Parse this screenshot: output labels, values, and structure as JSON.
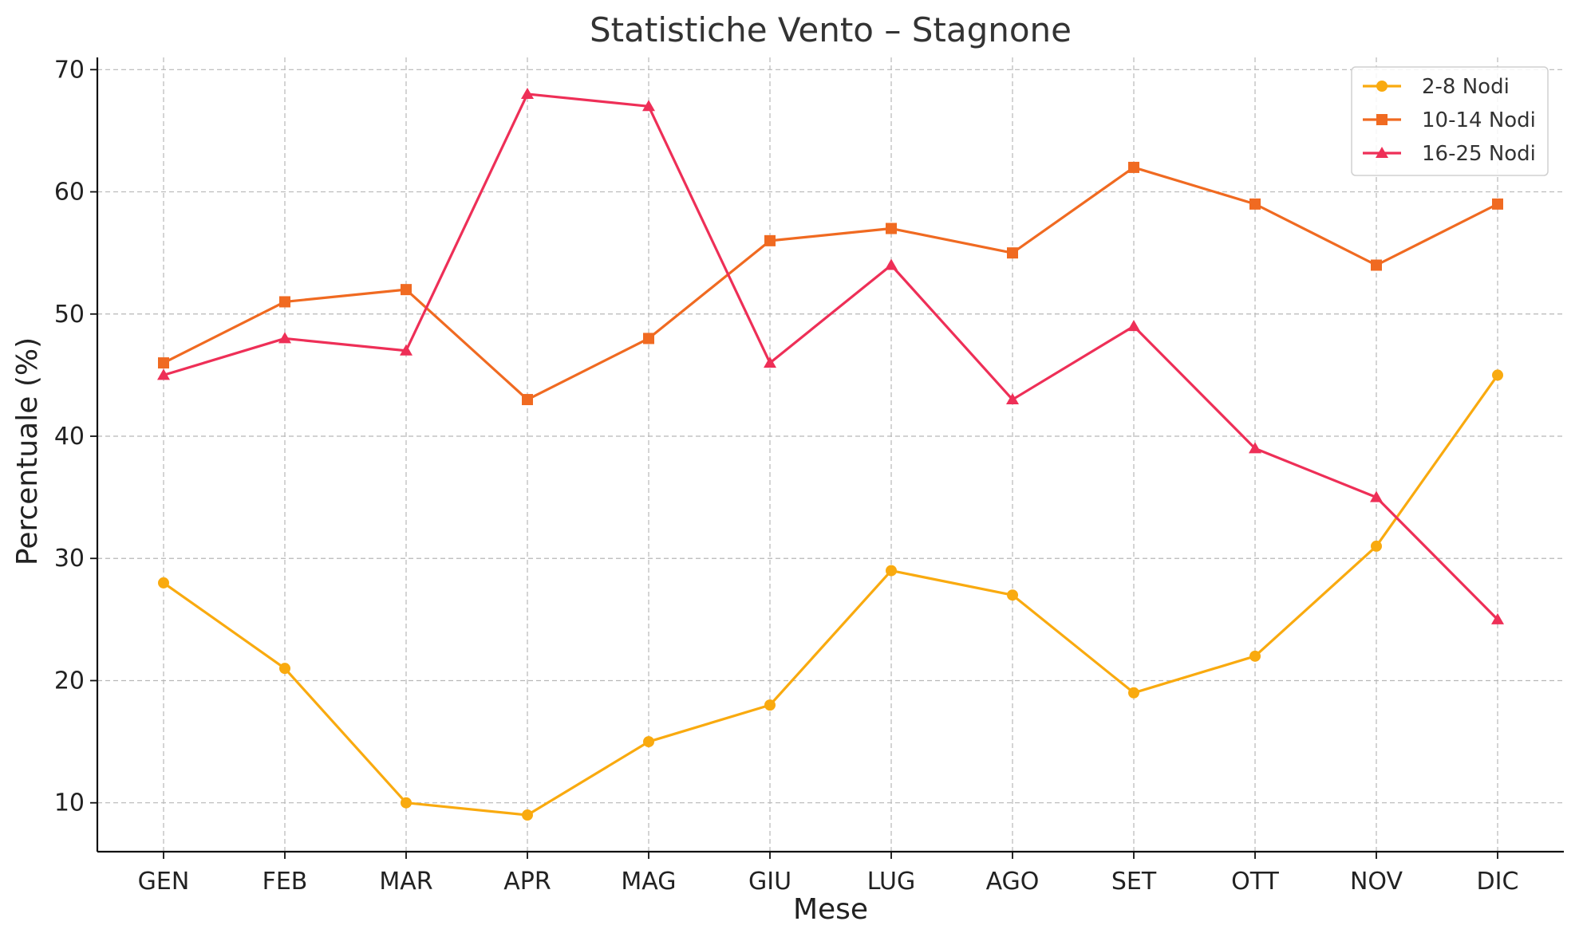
{
  "chart_data": {
    "type": "line",
    "title": "Statistiche Vento – Stagnone",
    "xlabel": "Mese",
    "ylabel": "Percentuale (%)",
    "categories": [
      "GEN",
      "FEB",
      "MAR",
      "APR",
      "MAG",
      "GIU",
      "LUG",
      "AGO",
      "SET",
      "OTT",
      "NOV",
      "DIC"
    ],
    "ylim": [
      6,
      71
    ],
    "yticks": [
      10,
      20,
      30,
      40,
      50,
      60,
      70
    ],
    "grid": true,
    "legend_position": "top-right",
    "series": [
      {
        "name": "2-8 Nodi",
        "color": "#F9AA0F",
        "marker": "circle",
        "values": [
          28,
          21,
          10,
          9,
          15,
          18,
          29,
          27,
          19,
          22,
          31,
          45
        ]
      },
      {
        "name": "10-14 Nodi",
        "color": "#F06A21",
        "marker": "square",
        "values": [
          46,
          51,
          52,
          43,
          48,
          56,
          57,
          55,
          62,
          59,
          54,
          59
        ]
      },
      {
        "name": "16-25 Nodi",
        "color": "#EE2F57",
        "marker": "triangle",
        "values": [
          45,
          48,
          47,
          68,
          67,
          46,
          54,
          43,
          49,
          39,
          35,
          25
        ]
      }
    ]
  }
}
